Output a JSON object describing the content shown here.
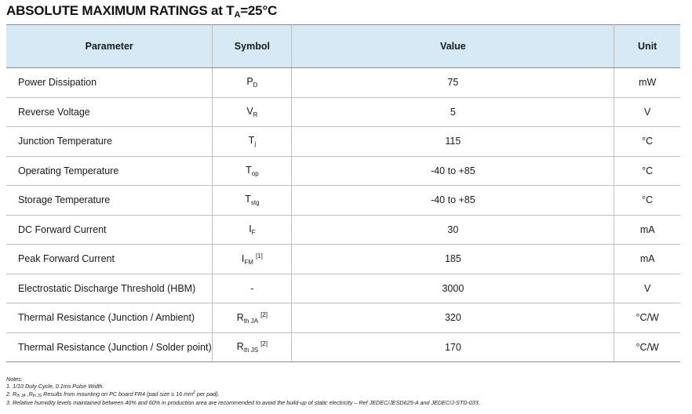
{
  "title": {
    "main": "ABSOLUTE MAXIMUM RATINGS at T",
    "sub": "A",
    "tail": "=25°C"
  },
  "table": {
    "headers": [
      "Parameter",
      "Symbol",
      "Value",
      "Unit"
    ],
    "rows": [
      {
        "parameter": "Power Dissipation",
        "sym_main": "P",
        "sym_sub": "D",
        "sym_sup": "",
        "value": "75",
        "unit": "mW"
      },
      {
        "parameter": "Reverse Voltage",
        "sym_main": "V",
        "sym_sub": "R",
        "sym_sup": "",
        "value": "5",
        "unit": "V"
      },
      {
        "parameter": "Junction Temperature",
        "sym_main": "T",
        "sym_sub": "j",
        "sym_sup": "",
        "value": "115",
        "unit": "°C"
      },
      {
        "parameter": "Operating Temperature",
        "sym_main": "T",
        "sym_sub": "op",
        "sym_sup": "",
        "value": "-40 to +85",
        "unit": "°C"
      },
      {
        "parameter": "Storage Temperature",
        "sym_main": "T",
        "sym_sub": "stg",
        "sym_sup": "",
        "value": "-40 to +85",
        "unit": "°C"
      },
      {
        "parameter": "DC Forward Current",
        "sym_main": "I",
        "sym_sub": "F",
        "sym_sup": "",
        "value": "30",
        "unit": "mA"
      },
      {
        "parameter": "Peak Forward Current",
        "sym_main": "I",
        "sym_sub": "FM",
        "sym_sup": "[1]",
        "value": "185",
        "unit": "mA"
      },
      {
        "parameter": "Electrostatic Discharge Threshold (HBM)",
        "sym_main": "-",
        "sym_sub": "",
        "sym_sup": "",
        "value": "3000",
        "unit": "V"
      },
      {
        "parameter": "Thermal Resistance (Junction / Ambient)",
        "sym_main": "R",
        "sym_sub": "th JA",
        "sym_sup": "[2]",
        "value": "320",
        "unit": "°C/W"
      },
      {
        "parameter": "Thermal Resistance (Junction / Solder point)",
        "sym_main": "R",
        "sym_sub": "th JS",
        "sym_sup": "[2]",
        "value": "170",
        "unit": "°C/W"
      }
    ]
  },
  "notes": {
    "heading": "Notes:",
    "note1": "1. 1/10 Duty Cycle, 0.1ms Pulse Width.",
    "note2": {
      "prefix": "2. R",
      "sub1": "th JA",
      "mid": " ,R",
      "sub2": "th JS",
      "text": " Results from mounting on PC board FR4 (pad size ≥ 16 mm",
      "sup": "2",
      "end": " per pad)."
    },
    "note3": "3. Relative humidity levels maintained between 40% and 60% in production area are recommended to avoid the build-up of static electricity – Ref JEDEC/JESD625-A and JEDEC/J-STD-033."
  }
}
